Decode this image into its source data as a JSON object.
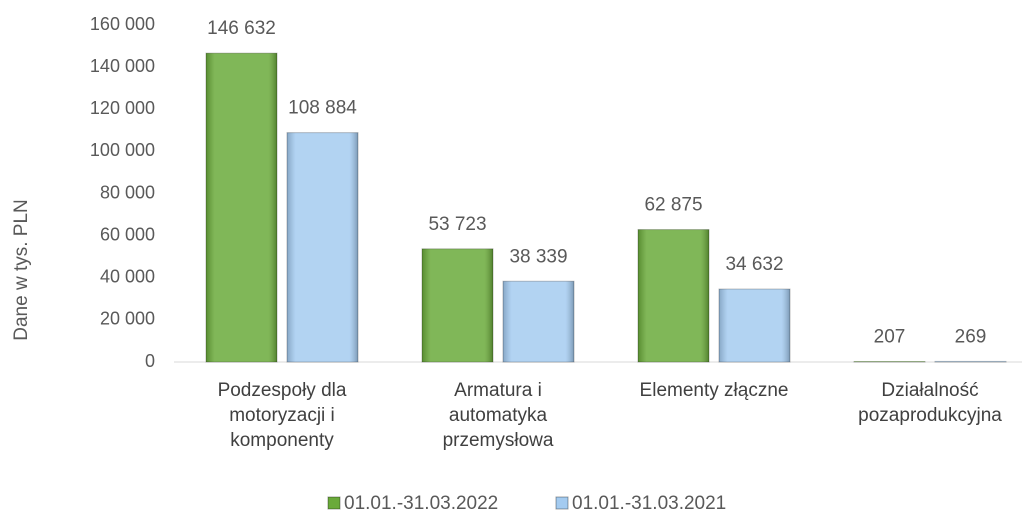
{
  "chart_data": {
    "type": "bar",
    "y_axis_label": "Dane w tys. PLN",
    "categories": [
      "Podzespoły dla motoryzacji i komponenty",
      "Armatura i automatyka przemysłowa",
      "Elementy złączne",
      "Działalność pozaprodukcyjna"
    ],
    "series": [
      {
        "name": "01.01.-31.03.2022",
        "color": "#6aaa3a",
        "values": [
          146632,
          53723,
          62875,
          207
        ],
        "value_labels": [
          "146 632",
          "53 723",
          "62 875",
          "207"
        ]
      },
      {
        "name": "01.01.-31.03.2021",
        "color": "#a4cbf0",
        "values": [
          108884,
          38339,
          34632,
          269
        ],
        "value_labels": [
          "108 884",
          "38 339",
          "34 632",
          "269"
        ]
      }
    ],
    "ylim": [
      0,
      160000
    ],
    "yticks": [
      0,
      {
        "value": 20000,
        "label": "20 000"
      },
      {
        "value": 40000,
        "label": "40 000"
      },
      {
        "value": 60000,
        "label": "60 000"
      },
      {
        "value": 80000,
        "label": "80 000"
      },
      {
        "value": 100000,
        "label": "100 000"
      },
      {
        "value": 120000,
        "label": "120 000"
      },
      {
        "value": 140000,
        "label": "140 000"
      },
      {
        "value": 160000,
        "label": "160 000"
      }
    ],
    "legend": "bottom"
  }
}
